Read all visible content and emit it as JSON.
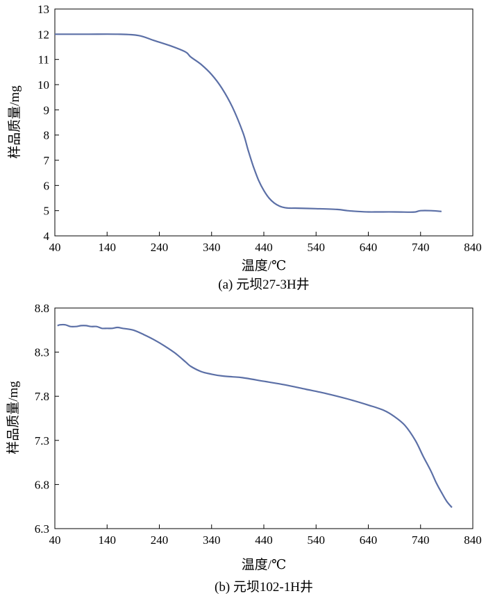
{
  "chart_data": [
    {
      "type": "line",
      "title": "(a) 元坝27-3H井",
      "xlabel": "温度/℃",
      "ylabel": "样品质量/mg",
      "xlim": [
        40,
        840
      ],
      "ylim": [
        4,
        13
      ],
      "x_ticks": [
        "40",
        "140",
        "240",
        "340",
        "440",
        "540",
        "640",
        "740",
        "840"
      ],
      "y_ticks": [
        "4",
        "5",
        "6",
        "7",
        "8",
        "9",
        "10",
        "11",
        "12",
        "13"
      ],
      "grid": false,
      "line_color": "#5b6fa6",
      "series": [
        {
          "x": [
            40,
            100,
            160,
            200,
            230,
            260,
            290,
            300,
            320,
            340,
            360,
            380,
            400,
            410,
            420,
            430,
            440,
            450,
            460,
            470,
            480,
            490,
            500,
            540,
            580,
            600,
            620,
            640,
            660,
            690,
            720,
            730,
            740,
            760,
            780
          ],
          "y": [
            12.0,
            12.0,
            12.0,
            11.95,
            11.75,
            11.55,
            11.3,
            11.1,
            10.8,
            10.4,
            9.85,
            9.1,
            8.1,
            7.4,
            6.75,
            6.2,
            5.8,
            5.5,
            5.3,
            5.18,
            5.12,
            5.1,
            5.1,
            5.08,
            5.05,
            5.0,
            4.97,
            4.95,
            4.95,
            4.95,
            4.94,
            4.95,
            5.0,
            5.0,
            4.97
          ]
        }
      ]
    },
    {
      "type": "line",
      "title": "(b) 元坝102-1H井",
      "xlabel": "温度/℃",
      "ylabel": "样品质量/mg",
      "xlim": [
        40,
        840
      ],
      "ylim": [
        6.3,
        8.8
      ],
      "x_ticks": [
        "40",
        "140",
        "240",
        "340",
        "440",
        "540",
        "640",
        "740",
        "840"
      ],
      "y_ticks": [
        "6.3",
        "6.8",
        "7.3",
        "7.8",
        "8.3",
        "8.8"
      ],
      "grid": false,
      "line_color": "#5b6fa6",
      "series": [
        {
          "x": [
            45,
            50,
            60,
            70,
            80,
            90,
            100,
            110,
            120,
            130,
            140,
            150,
            160,
            170,
            190,
            210,
            230,
            250,
            270,
            290,
            300,
            320,
            340,
            360,
            380,
            400,
            440,
            480,
            520,
            560,
            600,
            640,
            670,
            690,
            710,
            730,
            745,
            760,
            770,
            780,
            790,
            800
          ],
          "y": [
            8.6,
            8.61,
            8.61,
            8.59,
            8.59,
            8.6,
            8.6,
            8.59,
            8.59,
            8.57,
            8.57,
            8.57,
            8.58,
            8.57,
            8.55,
            8.5,
            8.44,
            8.37,
            8.29,
            8.19,
            8.14,
            8.08,
            8.05,
            8.03,
            8.02,
            8.01,
            7.97,
            7.93,
            7.88,
            7.83,
            7.77,
            7.7,
            7.64,
            7.57,
            7.47,
            7.3,
            7.12,
            6.95,
            6.82,
            6.71,
            6.61,
            6.54
          ]
        }
      ]
    }
  ]
}
